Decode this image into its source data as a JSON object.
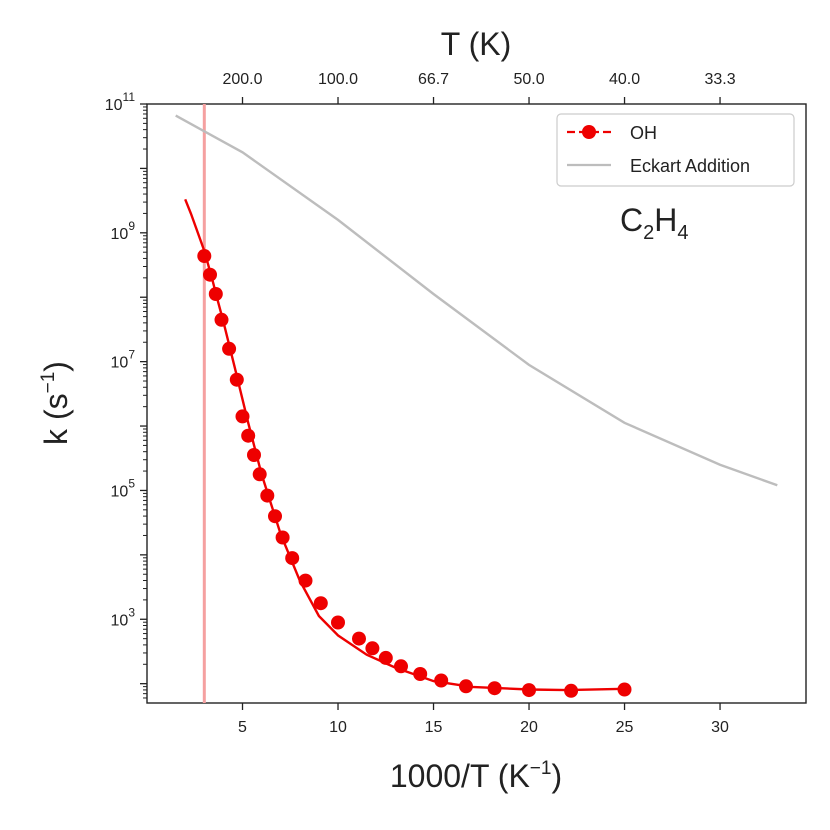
{
  "chart_data": {
    "type": "line",
    "title": "",
    "annotation": "C2H4",
    "annotation_parts": {
      "base1": "C",
      "sub1": "2",
      "base2": "H",
      "sub2": "4"
    },
    "xlabel": "1000/T (K⁻¹)",
    "xlabel_parts": {
      "main": "1000/T (K",
      "sup": "−1",
      "close": ")"
    },
    "ylabel": "k (s⁻¹)",
    "ylabel_parts": {
      "main": "k (s",
      "sup": "−1",
      "close": ")"
    },
    "top_xlabel": "T (K)",
    "xlim": [
      0.0,
      34.5
    ],
    "ylim_log10": [
      1.7,
      11.0
    ],
    "yscale": "log",
    "x_ticks": [
      {
        "value": 5,
        "label": "5"
      },
      {
        "value": 10,
        "label": "10"
      },
      {
        "value": 15,
        "label": "15"
      },
      {
        "value": 20,
        "label": "20"
      },
      {
        "value": 25,
        "label": "25"
      },
      {
        "value": 30,
        "label": "30"
      }
    ],
    "y_ticks": [
      {
        "exp": 3,
        "base": "10",
        "sup": "3"
      },
      {
        "exp": 5,
        "base": "10",
        "sup": "5"
      },
      {
        "exp": 7,
        "base": "10",
        "sup": "7"
      },
      {
        "exp": 9,
        "base": "10",
        "sup": "9"
      },
      {
        "exp": 11,
        "base": "10",
        "sup": "11"
      }
    ],
    "top_ticks": [
      {
        "x": 5,
        "label": "200.0"
      },
      {
        "x": 10,
        "label": "100.0"
      },
      {
        "x": 15,
        "label": "66.7"
      },
      {
        "x": 20,
        "label": "50.0"
      },
      {
        "x": 25,
        "label": "40.0"
      },
      {
        "x": 30,
        "label": "33.3"
      }
    ],
    "vertical_line_x": 3.0,
    "legend": {
      "placement": "top-right",
      "entries": [
        {
          "label": "OH",
          "style": "red dashed line with circle marker"
        },
        {
          "label": "Eckart Addition",
          "style": "grey line"
        }
      ]
    },
    "colors": {
      "oh": "#ee0000",
      "eckart": "#bdbdbd",
      "vline": "#f5a0a0",
      "axis": "#222222"
    },
    "series": [
      {
        "name": "OH",
        "curve_log10": [
          [
            2.0,
            9.52
          ],
          [
            2.3,
            9.3
          ],
          [
            2.6,
            9.05
          ],
          [
            3.0,
            8.72
          ],
          [
            3.4,
            8.3
          ],
          [
            3.7,
            7.95
          ],
          [
            4.0,
            7.62
          ],
          [
            4.6,
            6.9
          ],
          [
            5.3,
            6.05
          ],
          [
            6.0,
            5.25
          ],
          [
            7.0,
            4.32
          ],
          [
            8.0,
            3.6
          ],
          [
            9.0,
            3.05
          ],
          [
            10.0,
            2.75
          ],
          [
            11.5,
            2.45
          ],
          [
            13.0,
            2.25
          ],
          [
            15.0,
            2.04
          ],
          [
            17.0,
            1.95
          ],
          [
            20.0,
            1.91
          ],
          [
            22.0,
            1.9
          ],
          [
            25.0,
            1.92
          ]
        ],
        "points_log10": [
          [
            3.0,
            8.64
          ],
          [
            3.3,
            8.35
          ],
          [
            3.6,
            8.05
          ],
          [
            3.9,
            7.65
          ],
          [
            4.3,
            7.2
          ],
          [
            4.7,
            6.72
          ],
          [
            5.0,
            6.15
          ],
          [
            5.3,
            5.85
          ],
          [
            5.6,
            5.55
          ],
          [
            5.9,
            5.25
          ],
          [
            6.3,
            4.92
          ],
          [
            6.7,
            4.6
          ],
          [
            7.1,
            4.27
          ],
          [
            7.6,
            3.95
          ],
          [
            8.3,
            3.6
          ],
          [
            9.1,
            3.25
          ],
          [
            10.0,
            2.95
          ],
          [
            11.1,
            2.7
          ],
          [
            11.8,
            2.55
          ],
          [
            12.5,
            2.4
          ],
          [
            13.3,
            2.27
          ],
          [
            14.3,
            2.15
          ],
          [
            15.4,
            2.05
          ],
          [
            16.7,
            1.96
          ],
          [
            18.2,
            1.93
          ],
          [
            20.0,
            1.9
          ],
          [
            22.2,
            1.89
          ],
          [
            25.0,
            1.91
          ]
        ]
      },
      {
        "name": "Eckart Addition",
        "curve_log10": [
          [
            1.5,
            10.82
          ],
          [
            5.0,
            10.25
          ],
          [
            10.0,
            9.2
          ],
          [
            15.0,
            8.05
          ],
          [
            20.0,
            6.95
          ],
          [
            25.0,
            6.05
          ],
          [
            30.0,
            5.4
          ],
          [
            33.0,
            5.08
          ]
        ]
      }
    ]
  }
}
